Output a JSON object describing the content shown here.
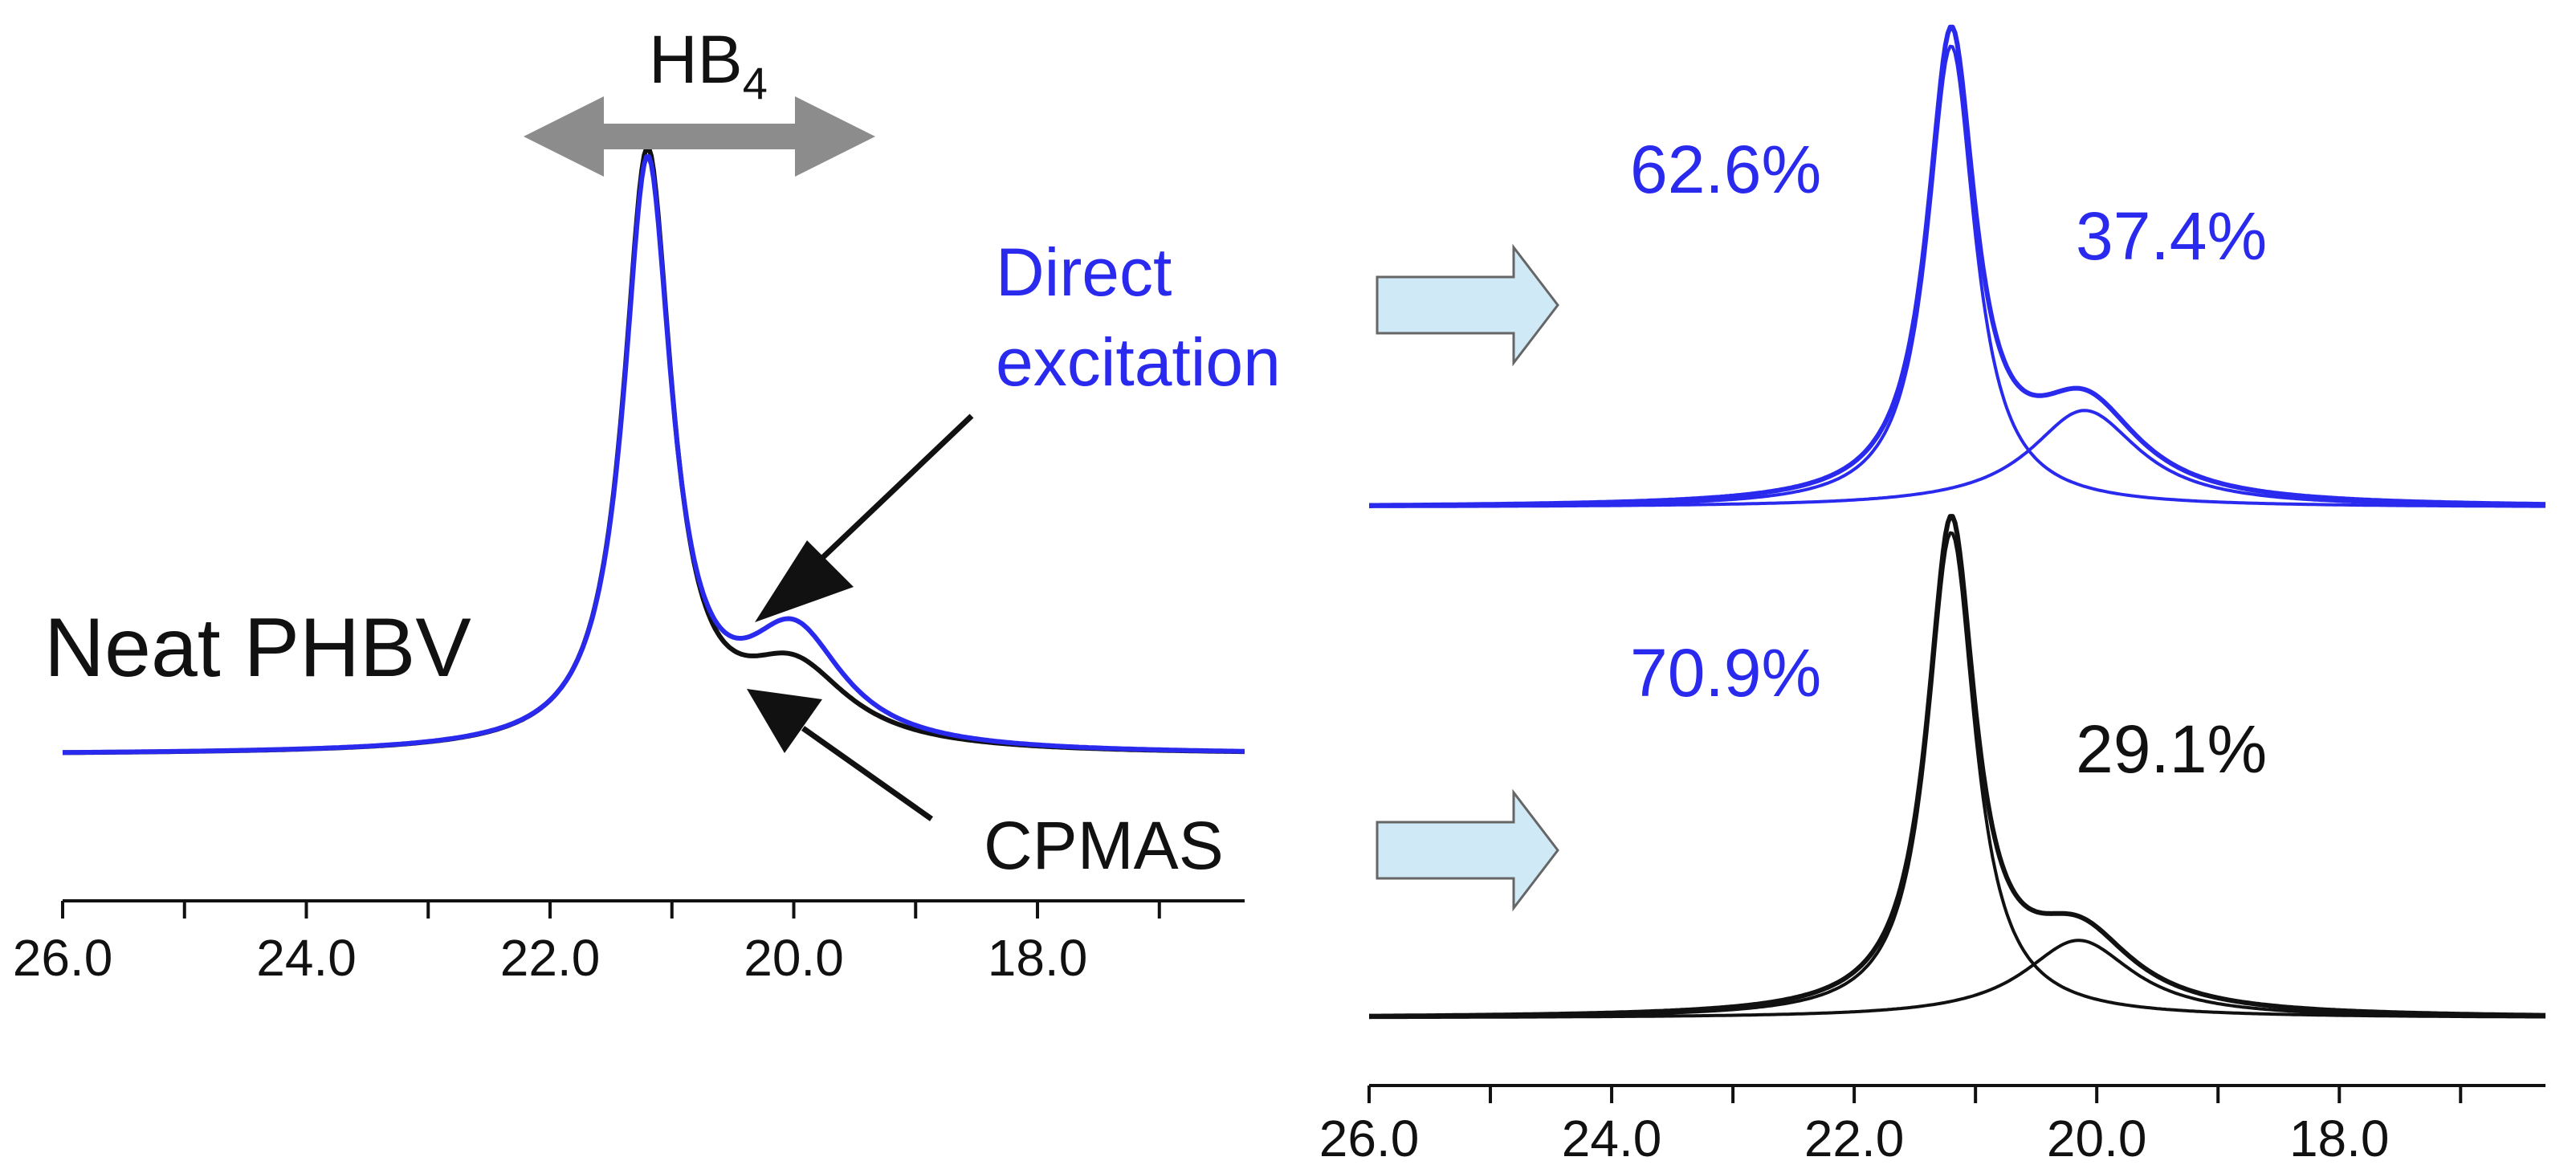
{
  "colors": {
    "blue": "#2a2aee",
    "black": "#111111",
    "arrow_gray": "#8c8c8c",
    "arrow_fill": "#cfe9f7",
    "arrow_stroke": "#666666"
  },
  "annotations": {
    "hb_main": "HB",
    "hb_sub": "4",
    "direct_line1": "Direct",
    "direct_line2": "excitation",
    "cpmas": "CPMAS",
    "neat": "Neat PHBV"
  },
  "chart_data": [
    {
      "id": "left",
      "type": "line",
      "title": "Neat PHBV",
      "xlabel": "",
      "ylabel": "",
      "xlim": [
        26.0,
        16.3
      ],
      "x_reversed": true,
      "ylim": [
        0,
        1
      ],
      "grid": false,
      "xticks": [
        "26.0",
        "24.0",
        "22.0",
        "20.0",
        "18.0"
      ],
      "xtick_values": [
        26.0,
        24.0,
        22.0,
        20.0,
        18.0
      ],
      "series": [
        {
          "name": "CPMAS",
          "color": "#111111",
          "components": [
            {
              "center": 21.2,
              "width": 0.24,
              "height": 1.0
            },
            {
              "center": 20.0,
              "width": 0.55,
              "height": 0.13
            }
          ]
        },
        {
          "name": "Direct excitation",
          "color": "#2a2aee",
          "components": [
            {
              "center": 21.2,
              "width": 0.24,
              "height": 0.98
            },
            {
              "center": 20.0,
              "width": 0.5,
              "height": 0.19
            }
          ]
        }
      ],
      "annotations": [
        {
          "text": "HB4",
          "type": "double-arrow",
          "from": 23.7,
          "to": 18.7
        }
      ]
    },
    {
      "id": "right-top",
      "type": "line",
      "title": "",
      "xlabel": "",
      "ylabel": "",
      "xlim": [
        26.0,
        16.3
      ],
      "x_reversed": true,
      "ylim": [
        0,
        1
      ],
      "grid": false,
      "series": [
        {
          "name": "Direct excitation fit",
          "color": "#2a2aee",
          "components": [
            {
              "center": 21.2,
              "width": 0.24,
              "height": 1.0,
              "percent": 62.6
            },
            {
              "center": 20.1,
              "width": 0.55,
              "height": 0.21,
              "percent": 37.4
            }
          ]
        }
      ],
      "labels": [
        "62.6%",
        "37.4%"
      ]
    },
    {
      "id": "right-bottom",
      "type": "line",
      "title": "",
      "xlabel": "",
      "ylabel": "",
      "xlim": [
        26.0,
        16.3
      ],
      "x_reversed": true,
      "ylim": [
        0,
        1
      ],
      "grid": false,
      "xticks": [
        "26.0",
        "24.0",
        "22.0",
        "20.0",
        "18.0"
      ],
      "xtick_values": [
        26.0,
        24.0,
        22.0,
        20.0,
        18.0
      ],
      "series": [
        {
          "name": "CPMAS fit",
          "color": "#111111",
          "components": [
            {
              "center": 21.2,
              "width": 0.24,
              "height": 1.0,
              "percent": 70.9
            },
            {
              "center": 20.15,
              "width": 0.55,
              "height": 0.16,
              "percent": 29.1
            }
          ]
        }
      ],
      "labels": [
        "70.9%",
        "29.1%"
      ]
    }
  ]
}
